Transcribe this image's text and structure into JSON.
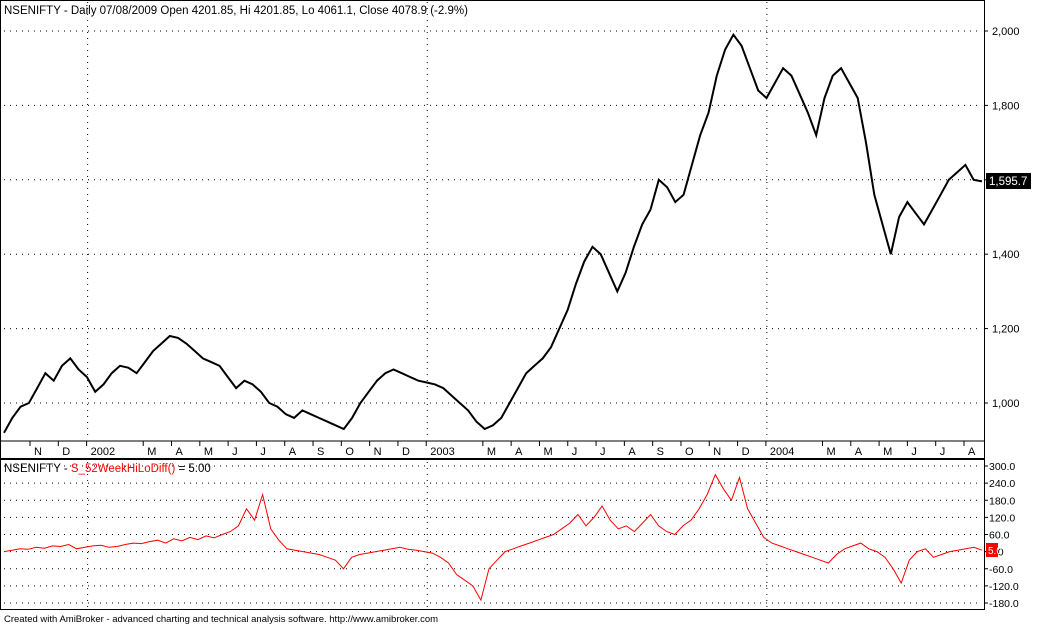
{
  "header": {
    "symbol": "NSENIFTY",
    "info": "NSENIFTY - Daily 07/08/2009 Open 4201.85, Hi 4201.85, Lo 4061.1, Close 4078.9 (-2.9%)",
    "last_value": "1,595.7"
  },
  "indicator_header": {
    "prefix": "NSENIFTY - ",
    "name": "S_52WeekHiLoDiff()",
    "suffix": " = 5.00",
    "name_color": "#ff0000",
    "last_value": "5.0"
  },
  "footer": "Created with AmiBroker - advanced charting and technical analysis software. http://www.amibroker.com",
  "colors": {
    "price": "#000000",
    "indicator": "#ff0000",
    "grid": "#000000",
    "marker": "#ff0000"
  },
  "chart_data": [
    {
      "type": "candlestick-line",
      "ylim": [
        900,
        2000
      ],
      "yticks": [
        1000,
        1200,
        1400,
        1600,
        1800,
        2000
      ],
      "ytick_labels": [
        "1,000",
        "1,200",
        "1,400",
        "1,600",
        "1,800",
        "2,000"
      ],
      "x_labels": [
        "N",
        "D",
        "2002",
        "M",
        "A",
        "M",
        "J",
        "J",
        "A",
        "S",
        "O",
        "N",
        "D",
        "2003",
        "M",
        "A",
        "M",
        "J",
        "J",
        "A",
        "S",
        "O",
        "N",
        "D",
        "2004",
        "M",
        "A",
        "M",
        "J",
        "J",
        "A"
      ],
      "x_label_index": [
        0,
        1,
        2,
        4,
        5,
        6,
        7,
        8,
        9,
        10,
        11,
        12,
        13,
        14,
        16,
        17,
        18,
        19,
        20,
        21,
        22,
        23,
        24,
        25,
        26,
        28,
        29,
        30,
        31,
        32,
        33
      ],
      "month_count": 34,
      "year_dividers": [
        2,
        14,
        26
      ],
      "series": [
        {
          "values": [
            920,
            960,
            990,
            1000,
            1040,
            1080,
            1060,
            1100,
            1120,
            1090,
            1070,
            1030,
            1050,
            1080,
            1100,
            1095,
            1080,
            1110,
            1140,
            1160,
            1180,
            1175,
            1160,
            1140,
            1120,
            1110,
            1100,
            1070,
            1040,
            1060,
            1050,
            1030,
            1000,
            990,
            970,
            960,
            980,
            970,
            960,
            950,
            940,
            930,
            960,
            1000,
            1030,
            1060,
            1080,
            1090,
            1080,
            1070,
            1060,
            1055,
            1050,
            1040,
            1020,
            1000,
            980,
            950,
            930,
            940,
            960,
            1000,
            1040,
            1080,
            1100,
            1120,
            1150,
            1200,
            1250,
            1320,
            1380,
            1420,
            1400,
            1350,
            1300,
            1350,
            1420,
            1480,
            1520,
            1600,
            1580,
            1540,
            1560,
            1640,
            1720,
            1780,
            1880,
            1950,
            1990,
            1960,
            1900,
            1840,
            1820,
            1860,
            1900,
            1880,
            1830,
            1780,
            1720,
            1820,
            1880,
            1900,
            1860,
            1820,
            1700,
            1560,
            1480,
            1400,
            1500,
            1540,
            1510,
            1480,
            1520,
            1560,
            1600,
            1620,
            1640,
            1600,
            1595.7
          ]
        }
      ]
    },
    {
      "type": "line",
      "ylim": [
        -180,
        300
      ],
      "yticks": [
        -180,
        -120,
        -60,
        0,
        60,
        120,
        180,
        240,
        300
      ],
      "ytick_labels": [
        "-180.0",
        "-120.0",
        "-60.0",
        "0.0",
        "60.0",
        "120.0",
        "180.0",
        "240.0",
        "300.0"
      ],
      "series": [
        {
          "name": "S_52WeekHiLoDiff()",
          "values": [
            0,
            5,
            10,
            8,
            15,
            12,
            20,
            18,
            25,
            10,
            15,
            20,
            22,
            15,
            18,
            25,
            30,
            28,
            35,
            40,
            30,
            45,
            38,
            50,
            42,
            55,
            48,
            60,
            70,
            90,
            150,
            110,
            200,
            80,
            40,
            10,
            5,
            0,
            -5,
            -10,
            -20,
            -30,
            -60,
            -20,
            -10,
            -5,
            0,
            5,
            10,
            15,
            8,
            5,
            0,
            -5,
            -20,
            -40,
            -80,
            -100,
            -120,
            -170,
            -60,
            -30,
            0,
            10,
            20,
            30,
            40,
            50,
            60,
            80,
            100,
            130,
            90,
            120,
            160,
            110,
            80,
            90,
            70,
            100,
            130,
            90,
            70,
            60,
            90,
            110,
            150,
            200,
            270,
            220,
            180,
            260,
            150,
            100,
            50,
            30,
            20,
            10,
            0,
            -10,
            -20,
            -30,
            -40,
            -10,
            10,
            20,
            30,
            10,
            0,
            -20,
            -60,
            -110,
            -30,
            0,
            10,
            -20,
            -10,
            0,
            5,
            10,
            15,
            5
          ]
        }
      ]
    }
  ]
}
